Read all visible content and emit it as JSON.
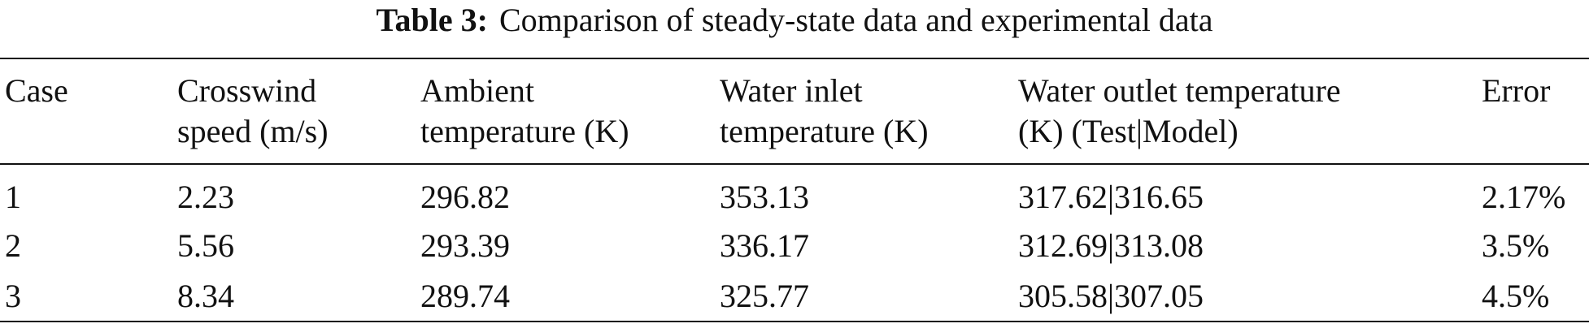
{
  "caption": {
    "label": "Table 3:",
    "text": "Comparison of steady-state data and experimental data"
  },
  "table": {
    "headers": [
      [
        "Case"
      ],
      [
        "Crosswind",
        "speed (m/s)"
      ],
      [
        "Ambient",
        "temperature (K)"
      ],
      [
        "Water inlet",
        "temperature (K)"
      ],
      [
        "Water outlet temperature",
        "(K) (Test|Model)"
      ],
      [
        "Error"
      ]
    ],
    "rows": [
      [
        "1",
        "2.23",
        "296.82",
        "353.13",
        "317.62|316.65",
        "2.17%"
      ],
      [
        "2",
        "5.56",
        "293.39",
        "336.17",
        "312.69|313.08",
        "3.5%"
      ],
      [
        "3",
        "8.34",
        "289.74",
        "325.77",
        "305.58|307.05",
        "4.5%"
      ]
    ]
  }
}
